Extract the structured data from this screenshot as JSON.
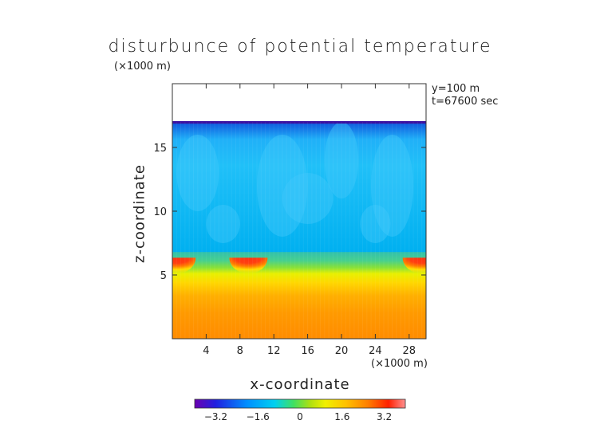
{
  "chart_data": {
    "type": "heatmap",
    "title": "disturbunce of potential temperature",
    "xlabel": "x-coordinate",
    "ylabel": "z-coordinate",
    "x_unit": "(×1000 m)",
    "y_unit": "(×1000 m)",
    "annotations": [
      "y=100 m",
      "t=67600 sec"
    ],
    "xlim": [
      0,
      30
    ],
    "ylim": [
      0,
      20
    ],
    "x_ticks": [
      4,
      8,
      12,
      16,
      20,
      24,
      28
    ],
    "y_ticks": [
      5,
      10,
      15
    ],
    "colorbar": {
      "ticks": [
        -3.2,
        -1.6,
        0,
        1.6,
        3.2
      ],
      "tick_labels": [
        "−3.2",
        "−1.6",
        "0",
        "1.6",
        "3.2"
      ],
      "range": [
        -4,
        4
      ],
      "colors": [
        "#6a00b0",
        "#2020e0",
        "#0090ff",
        "#00d0f0",
        "#40e060",
        "#b0e010",
        "#f0f000",
        "#ffc000",
        "#ff8000",
        "#ff2000",
        "#ff9090"
      ]
    },
    "field_summary": [
      {
        "z_range": [
          0,
          2.5
        ],
        "value": 2.4
      },
      {
        "z_range": [
          2.5,
          4.5
        ],
        "value": 1.8
      },
      {
        "z_range": [
          4.5,
          6
        ],
        "value": 0.9
      },
      {
        "z_range": [
          6,
          7.5
        ],
        "value": -0.3
      },
      {
        "z_range": [
          7.5,
          16.8
        ],
        "value": -1.3
      },
      {
        "z_range": [
          16.8,
          17
        ],
        "value": -3.8
      }
    ],
    "hot_spots": [
      {
        "x": 0.5,
        "z": 6.1,
        "value": 3.6
      },
      {
        "x": 9.0,
        "z": 6.1,
        "value": 3.6
      },
      {
        "x": 29.5,
        "z": 6.1,
        "value": 3.6
      }
    ]
  }
}
